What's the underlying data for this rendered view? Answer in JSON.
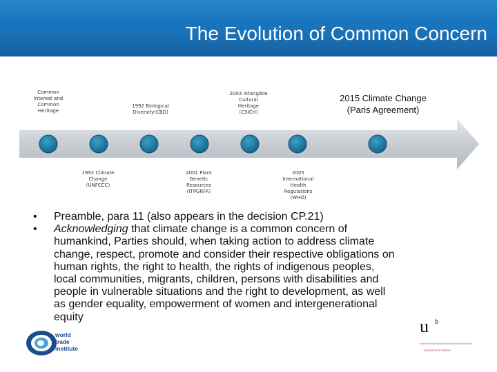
{
  "header": {
    "title": "The Evolution of Common Concern",
    "bg_color": "#1a72b8"
  },
  "timeline": {
    "arrow_color": "#c9cdd4",
    "node_color": "#1f7fa3",
    "above": [
      {
        "id": "n1",
        "text": [
          "Common",
          "Interest and",
          "Common",
          "Heritage"
        ]
      },
      {
        "id": "n3",
        "text": [
          "1992 Biological",
          "Diversity(CBD)"
        ]
      },
      {
        "id": "n5",
        "text": [
          "2003 Intangible",
          "Cultural",
          "Heritage",
          "(CSICH)"
        ]
      },
      {
        "id": "n7",
        "text": [
          "2015 Climate Change",
          "(Paris Agreement)"
        ]
      }
    ],
    "below": [
      {
        "id": "n2",
        "text": [
          "1992 Climate",
          "Change",
          "(UNFCCC)"
        ]
      },
      {
        "id": "n4",
        "text": [
          "2001 Plant",
          "Genetic",
          "Resources",
          "(ITPGRFA)"
        ]
      },
      {
        "id": "n6",
        "text": [
          "2005",
          "International",
          "Health",
          "Regulations",
          "(WHO)"
        ]
      }
    ]
  },
  "bullets": {
    "b1": "Preamble, para 11 (also appears in the decision CP.21)",
    "b2_italic": "Acknowledging",
    "b2_lines": [
      " that climate change is a common concern of",
      "humankind, Parties should, when taking action to address climate",
      "change, respect, promote and consider their respective obligations on",
      "human rights, the right to health, the rights of indigenous peoples,",
      "local communities, migrants, children, persons with disabilities and",
      "people in vulnerable situations and the right to development, as well",
      "as gender equality, empowerment of women and intergenerational",
      "equity"
    ]
  },
  "logos": {
    "wti": [
      "world",
      "trade",
      "institute"
    ],
    "unibern_mark": "u",
    "unibern_sup": "b",
    "unibern_text": "UNIVERSITÄT BERN"
  }
}
